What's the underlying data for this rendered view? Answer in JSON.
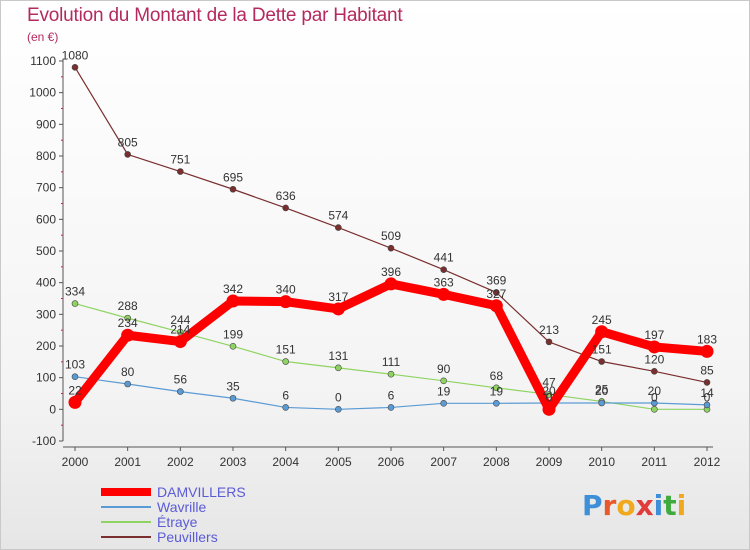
{
  "page": {
    "title": "Evolution du Montant de la Dette par Habitant",
    "subtitle": "(en €)"
  },
  "colors": {
    "title": "#b4295e",
    "legend_text": "#5b5bd6",
    "axis": "#555555",
    "grid": "#dddddd"
  },
  "logo": {
    "text": "Proxiti",
    "letters": [
      {
        "ch": "P",
        "color": "#3f8ed8"
      },
      {
        "ch": "r",
        "color": "#e8582a"
      },
      {
        "ch": "o",
        "color": "#f0a81c"
      },
      {
        "ch": "x",
        "color": "#e23b3b"
      },
      {
        "ch": "i",
        "color": "#3f8ed8"
      },
      {
        "ch": "t",
        "color": "#3fab3f"
      },
      {
        "ch": "i",
        "color": "#f0a81c"
      }
    ]
  },
  "chart_data": {
    "type": "line",
    "title": "Evolution du Montant de la Dette par Habitant",
    "subtitle": "(en €)",
    "xlabel": "",
    "ylabel": "",
    "x": [
      "2000",
      "2001",
      "2002",
      "2003",
      "2004",
      "2005",
      "2006",
      "2007",
      "2008",
      "2009",
      "2010",
      "2011",
      "2012"
    ],
    "ylim": [
      -100,
      1100
    ],
    "yticks": [
      -100,
      0,
      100,
      200,
      300,
      400,
      500,
      600,
      700,
      800,
      900,
      1000,
      1100
    ],
    "grid": false,
    "legend_position": "bottom-left",
    "series": [
      {
        "name": "DAMVILLERS",
        "color": "#ff0000",
        "values": [
          22,
          234,
          214,
          342,
          340,
          317,
          396,
          363,
          327,
          0,
          245,
          197,
          183
        ],
        "labels": [
          "22",
          "234",
          "214",
          "342",
          "340",
          "317",
          "396",
          "363",
          "327",
          "0",
          "245",
          "197",
          "183"
        ]
      },
      {
        "name": "Wavrille",
        "color": "#5b9bd5",
        "values": [
          103,
          80,
          56,
          35,
          6,
          0,
          6,
          19,
          19,
          20,
          20,
          20,
          14
        ],
        "labels": [
          "103",
          "80",
          "56",
          "35",
          "6",
          "0",
          "6",
          "19",
          "19",
          "20",
          "20",
          "20",
          "14"
        ]
      },
      {
        "name": "Étraye",
        "color": "#8fd462",
        "values": [
          334,
          288,
          244,
          199,
          151,
          131,
          111,
          90,
          68,
          47,
          25,
          0,
          0
        ],
        "labels": [
          "334",
          "288",
          "244",
          "199",
          "151",
          "131",
          "111",
          "90",
          "68",
          "47",
          "25",
          "0",
          "0"
        ]
      },
      {
        "name": "Peuvillers",
        "color": "#7a2e2e",
        "values": [
          1080,
          805,
          751,
          695,
          636,
          574,
          509,
          441,
          369,
          213,
          151,
          120,
          85
        ],
        "labels": [
          "1080",
          "805",
          "751",
          "695",
          "636",
          "574",
          "509",
          "441",
          "369",
          "213",
          "151",
          "120",
          "85"
        ]
      }
    ]
  }
}
